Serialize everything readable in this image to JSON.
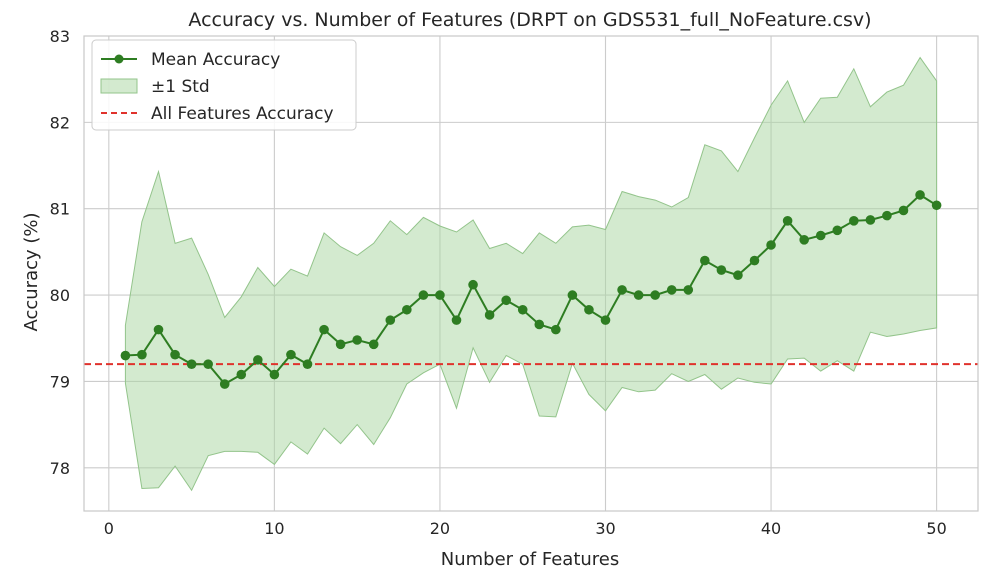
{
  "chart_data": {
    "type": "line",
    "title": "Accuracy vs. Number of Features (DRPT on GDS531_full_NoFeature.csv)",
    "xlabel": "Number of Features",
    "ylabel": "Accuracy (%)",
    "xlim": [
      -1.5,
      52.5
    ],
    "ylim": [
      77.5,
      83.0
    ],
    "xticks": [
      0,
      10,
      20,
      30,
      40,
      50
    ],
    "yticks": [
      78,
      79,
      80,
      81,
      82,
      83
    ],
    "grid": true,
    "legend_position": "top-left",
    "legend": [
      "Mean Accuracy",
      "±1 Std",
      "All Features Accuracy"
    ],
    "colors": {
      "mean": "#2e7d22",
      "band_fill": "#a8d5a0",
      "band_edge": "#93c48b",
      "reference": "#e0322c",
      "grid": "#cccccc",
      "frame": "#c8c8c8"
    },
    "x": [
      1,
      2,
      3,
      4,
      5,
      6,
      7,
      8,
      9,
      10,
      11,
      12,
      13,
      14,
      15,
      16,
      17,
      18,
      19,
      20,
      21,
      22,
      23,
      24,
      25,
      26,
      27,
      28,
      29,
      30,
      31,
      32,
      33,
      34,
      35,
      36,
      37,
      38,
      39,
      40,
      41,
      42,
      43,
      44,
      45,
      46,
      47,
      48,
      49,
      50
    ],
    "series": [
      {
        "name": "Mean Accuracy",
        "values": [
          79.3,
          79.31,
          79.6,
          79.31,
          79.2,
          79.2,
          78.97,
          79.08,
          79.25,
          79.08,
          79.31,
          79.2,
          79.6,
          79.43,
          79.48,
          79.43,
          79.71,
          79.83,
          80.0,
          80.0,
          79.71,
          80.12,
          79.77,
          79.94,
          79.83,
          79.66,
          79.6,
          80.0,
          79.83,
          79.71,
          80.06,
          80.0,
          80.0,
          80.06,
          80.06,
          80.4,
          80.29,
          80.23,
          80.4,
          80.58,
          80.86,
          80.64,
          80.69,
          80.75,
          80.86,
          80.87,
          80.92,
          80.98,
          81.16,
          81.04
        ]
      },
      {
        "name": "±1 Std",
        "upper": [
          79.65,
          80.85,
          81.43,
          80.6,
          80.66,
          80.24,
          79.74,
          79.98,
          80.32,
          80.1,
          80.3,
          80.22,
          80.72,
          80.56,
          80.46,
          80.6,
          80.86,
          80.7,
          80.9,
          80.8,
          80.73,
          80.87,
          80.54,
          80.6,
          80.48,
          80.72,
          80.6,
          80.79,
          80.81,
          80.76,
          81.2,
          81.14,
          81.1,
          81.02,
          81.13,
          81.74,
          81.67,
          81.43,
          81.82,
          82.2,
          82.48,
          82.0,
          82.28,
          82.29,
          82.62,
          82.18,
          82.35,
          82.43,
          82.75,
          82.48
        ],
        "lower": [
          78.98,
          77.76,
          77.77,
          78.02,
          77.74,
          78.14,
          78.19,
          78.19,
          78.18,
          78.04,
          78.3,
          78.16,
          78.46,
          78.28,
          78.5,
          78.27,
          78.58,
          78.97,
          79.1,
          79.2,
          78.69,
          79.39,
          78.99,
          79.3,
          79.2,
          78.6,
          78.59,
          79.21,
          78.85,
          78.66,
          78.93,
          78.88,
          78.9,
          79.09,
          79.0,
          79.08,
          78.91,
          79.04,
          78.99,
          78.97,
          79.26,
          79.27,
          79.12,
          79.24,
          79.12,
          79.57,
          79.52,
          79.55,
          79.59,
          79.62
        ]
      },
      {
        "name": "All Features Accuracy",
        "value": 79.2
      }
    ]
  }
}
